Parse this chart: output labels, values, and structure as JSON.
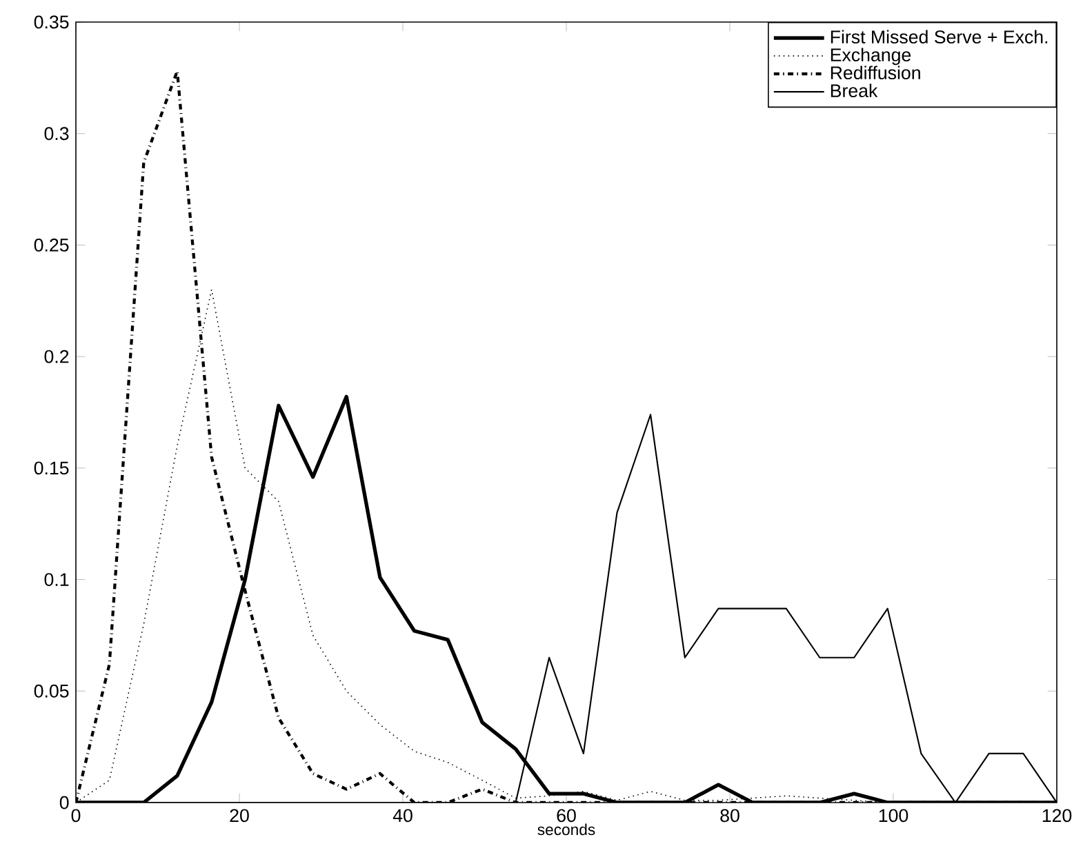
{
  "chart_data": {
    "type": "line",
    "xlabel": "seconds",
    "x": [
      0,
      4.1,
      8.3,
      12.4,
      16.6,
      20.7,
      24.8,
      29.0,
      33.1,
      37.2,
      41.4,
      45.5,
      49.7,
      53.8,
      57.9,
      62.1,
      66.2,
      70.3,
      74.5,
      78.6,
      82.8,
      86.9,
      91.0,
      95.2,
      99.3,
      103.4,
      107.6,
      111.7,
      115.9,
      120
    ],
    "series": [
      {
        "name": "First Missed Serve + Exch.",
        "color": "#000000",
        "line_style": "solid",
        "values": [
          0,
          0,
          0,
          0.012,
          0.045,
          0.1,
          0.178,
          0.146,
          0.182,
          0.101,
          0.077,
          0.073,
          0.036,
          0.024,
          0.004,
          0.004,
          0,
          0,
          0,
          0.008,
          0,
          0,
          0,
          0.004,
          0,
          0,
          0,
          0,
          0,
          0
        ]
      },
      {
        "name": "Exchange",
        "color": "#000000",
        "line_style": "dotted",
        "values": [
          0,
          0.01,
          0.08,
          0.16,
          0.23,
          0.15,
          0.135,
          0.075,
          0.05,
          0.035,
          0.023,
          0.018,
          0.01,
          0.002,
          0.003,
          0.005,
          0.001,
          0.005,
          0.001,
          0.001,
          0.002,
          0.003,
          0.002,
          0.001,
          0,
          0,
          0,
          0,
          0,
          0
        ]
      },
      {
        "name": "Rediffusion",
        "color": "#000000",
        "line_style": "dashdot",
        "values": [
          0,
          0.062,
          0.287,
          0.328,
          0.155,
          0.095,
          0.038,
          0.013,
          0.006,
          0.013,
          0,
          0,
          0.006,
          0,
          0,
          0,
          0,
          0,
          0,
          0,
          0,
          0,
          0,
          0,
          0,
          0,
          0,
          0,
          0,
          0
        ]
      },
      {
        "name": "Break",
        "color": "#000000",
        "line_style": "solid",
        "values": [
          0,
          0,
          0,
          0,
          0,
          0,
          0,
          0,
          0,
          0,
          0,
          0,
          0,
          0,
          0.065,
          0.022,
          0.13,
          0.174,
          0.065,
          0.087,
          0.087,
          0.087,
          0.065,
          0.065,
          0.087,
          0.022,
          0,
          0.022,
          0.022,
          0
        ]
      }
    ],
    "xlim": [
      0,
      120
    ],
    "xticks": [
      0,
      20,
      40,
      60,
      80,
      100,
      120
    ],
    "ylim": [
      0,
      0.35
    ],
    "yticks": [
      0,
      0.05,
      0.1,
      0.15,
      0.2,
      0.25,
      0.3,
      0.35
    ],
    "legend": "top right",
    "grid": false,
    "marker": "none"
  }
}
